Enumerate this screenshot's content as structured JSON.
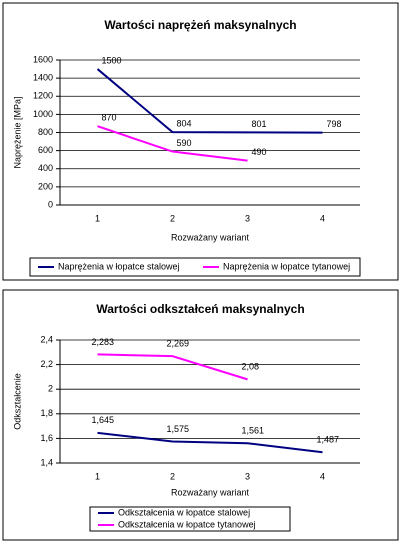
{
  "chart_data": [
    {
      "type": "line",
      "title": "Wartości naprężeń maksynalnych",
      "y_label": "Naprężenie [MPa]",
      "x_label": "Rozważany wariant",
      "categories": [
        "1",
        "2",
        "3",
        "4"
      ],
      "series": [
        {
          "name": "Naprężenia w łopatce stalowej",
          "color": "#000080",
          "values": [
            1500,
            804,
            801,
            798
          ]
        },
        {
          "name": "Naprężenia w łopatce tytanowej",
          "color": "#ff00ff",
          "values": [
            870,
            590,
            490,
            null
          ]
        }
      ],
      "ylim": [
        0,
        1600
      ],
      "yticks": [
        0,
        200,
        400,
        600,
        800,
        1000,
        1200,
        1400,
        1600
      ],
      "grid": true,
      "legend": "bottom"
    },
    {
      "type": "line",
      "title": "Wartości odkształceń maksynalnych",
      "y_label": "Odkształcenie",
      "x_label": "Rozważany wariant",
      "categories": [
        "1",
        "2",
        "3",
        "4"
      ],
      "series": [
        {
          "name": "Odkształcenia w łopatce stalowej",
          "color": "#000080",
          "values": [
            1.645,
            1.575,
            1.561,
            1.487
          ],
          "value_labels": [
            "1,645",
            "1,575",
            "1,561",
            "1,487"
          ]
        },
        {
          "name": "Odkształcenia w łopatce tytanowej",
          "color": "#ff00ff",
          "values": [
            2.283,
            2.269,
            2.08,
            null
          ],
          "value_labels": [
            "2,283",
            "2,269",
            "2,08",
            null
          ]
        }
      ],
      "ylim": [
        1.4,
        2.4
      ],
      "yticks": [
        {
          "value": 1.4,
          "label": "1,4"
        },
        {
          "value": 1.6,
          "label": "1,6"
        },
        {
          "value": 1.8,
          "label": "1,8"
        },
        {
          "value": 2.0,
          "label": "2"
        },
        {
          "value": 2.2,
          "label": "2,2"
        },
        {
          "value": 2.4,
          "label": "2,4"
        }
      ],
      "grid": true,
      "legend": "bottom"
    }
  ]
}
